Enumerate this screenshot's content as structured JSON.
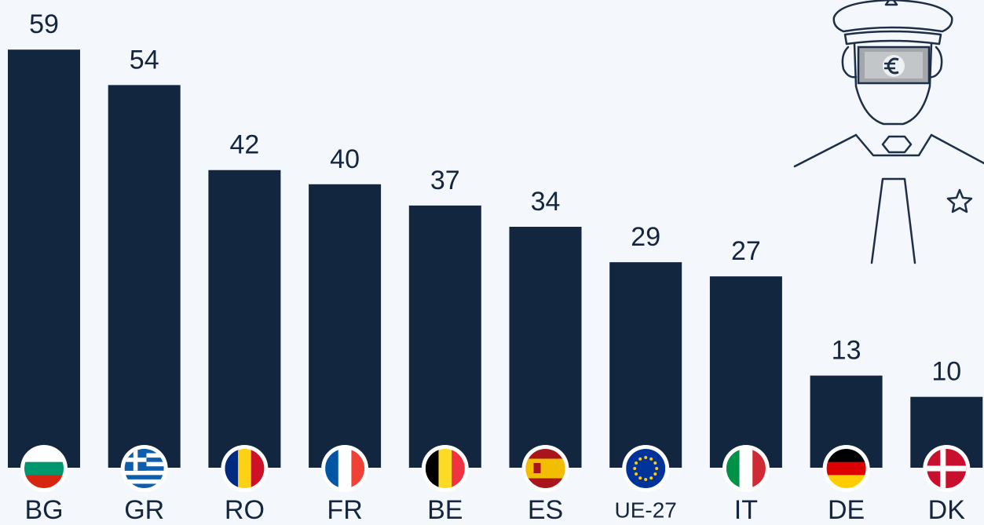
{
  "chart_data": {
    "type": "bar",
    "categories": [
      "BG",
      "GR",
      "RO",
      "FR",
      "BE",
      "ES",
      "UE-27",
      "IT",
      "DE",
      "DK"
    ],
    "values": [
      59,
      54,
      42,
      40,
      37,
      34,
      29,
      27,
      13,
      10
    ],
    "color": "#12263f"
  }
}
